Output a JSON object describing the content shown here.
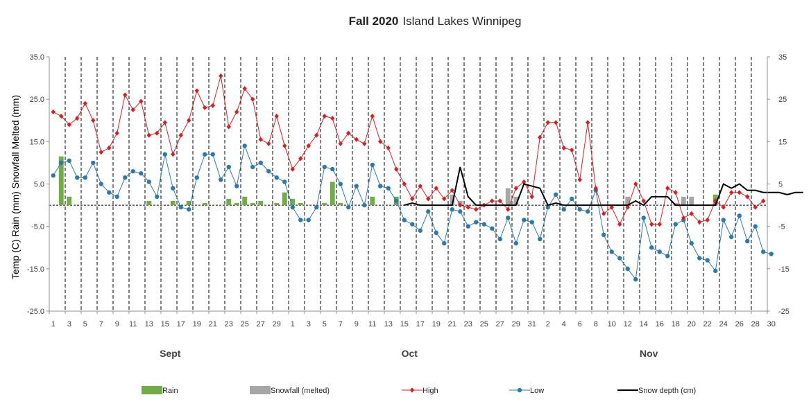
{
  "chart_data": {
    "type": "combo",
    "title_bold": "Fall 2020",
    "title_rest": "Island Lakes Winnipeg",
    "ylabel": "Temp (C) Rain (mm) Snowfall Melted (mm)",
    "y_left": {
      "min": -25,
      "max": 35,
      "step": 10,
      "tick_labels": [
        "35.0",
        "25.0",
        "15.0",
        "5.0",
        "-5.0",
        "-15.0",
        "-25.0"
      ]
    },
    "y_right": {
      "tick_labels": [
        "35",
        "25",
        "15",
        "5",
        "-5",
        "-15",
        "-25"
      ]
    },
    "x_tick_labels": [
      "1",
      "3",
      "5",
      "7",
      "9",
      "11",
      "13",
      "15",
      "17",
      "19",
      "21",
      "23",
      "25",
      "27",
      "29",
      "1",
      "3",
      "5",
      "7",
      "9",
      "11",
      "13",
      "15",
      "17",
      "19",
      "21",
      "23",
      "25",
      "27",
      "29",
      "31",
      "2",
      "4",
      "6",
      "8",
      "10",
      "12",
      "14",
      "16",
      "18",
      "20",
      "22",
      "24",
      "26",
      "28",
      "30"
    ],
    "months": [
      "Sept",
      "Oct",
      "Nov"
    ],
    "grid": "vertical-dashed",
    "legend_position": "bottom",
    "legend": [
      {
        "label": "Rain",
        "color": "#70ad47",
        "kind": "bar"
      },
      {
        "label": "Snowfall (melted)",
        "color": "#a6a6a6",
        "kind": "bar"
      },
      {
        "label": "High",
        "color": "#e31a1c",
        "kind": "line-diamond"
      },
      {
        "label": "Low",
        "color": "#2a7ab0",
        "kind": "line-circle"
      },
      {
        "label": "Snow depth (cm)",
        "color": "#000000",
        "kind": "line"
      }
    ],
    "series": [
      {
        "name": "High",
        "values": [
          22,
          21,
          19,
          20.5,
          24,
          20,
          12.5,
          13.5,
          17,
          26,
          22.5,
          24.5,
          16.5,
          17,
          19.5,
          12,
          16.5,
          20,
          27,
          23,
          23.5,
          30.5,
          18.5,
          22,
          27.5,
          25,
          15.5,
          14.5,
          21,
          14,
          8.5,
          11,
          14,
          16.5,
          21,
          20.5,
          14.5,
          17,
          15.5,
          14.5,
          21,
          15,
          13.5,
          8.5,
          5,
          1.5,
          4.5,
          1.5,
          4,
          1.5,
          3.5,
          0,
          -0.5,
          -1,
          0,
          1,
          1,
          -1,
          4,
          5.5,
          2,
          16,
          19.5,
          19.5,
          13.5,
          13,
          6,
          19.5,
          4,
          -2,
          -0.5,
          -4.5,
          -0.5,
          5,
          1,
          -4.5,
          -4.5,
          4,
          3,
          -3,
          -2,
          -4,
          -3.5,
          1,
          -0.5,
          3,
          3,
          2,
          -0.5,
          1
        ]
      },
      {
        "name": "Low",
        "values": [
          7,
          10,
          10.5,
          6.5,
          6.5,
          10,
          5,
          3,
          2,
          6.5,
          8,
          7.5,
          5.5,
          2,
          12,
          4,
          -0.5,
          -1,
          6.5,
          12,
          12,
          6,
          9,
          4.5,
          14,
          9,
          10,
          8,
          6.5,
          5.5,
          -0.5,
          -3.5,
          -3.5,
          -0.5,
          9,
          8.5,
          5,
          -0.5,
          4.5,
          0,
          9.5,
          4.5,
          4,
          1,
          -3.5,
          -4.5,
          -6,
          -1.5,
          -6.5,
          -9,
          -1,
          -1.5,
          -5,
          -4,
          -4.5,
          -5.5,
          -8,
          -3,
          -9,
          -3.5,
          -4,
          -8,
          -0.5,
          2.5,
          -1,
          1.5,
          -1,
          -1.5,
          3.5,
          -7,
          -11,
          -12.5,
          -15,
          -17.5,
          -3,
          -10,
          -11,
          -12,
          -4.5,
          -3.5,
          -9,
          -12.5,
          -13,
          -15.5,
          -3.5,
          -7.5,
          -2.5,
          -8.5,
          -5,
          -11,
          -11.5
        ]
      },
      {
        "name": "Rain",
        "values": [
          0,
          11.5,
          2,
          0,
          0,
          0,
          0,
          0,
          0,
          0,
          0,
          0,
          1,
          0,
          0,
          1,
          0,
          1,
          0,
          0.5,
          0,
          0,
          1.5,
          0.5,
          2,
          0.5,
          1,
          0,
          0.5,
          3,
          1.5,
          0.5,
          0,
          0,
          0.5,
          5.5,
          0.5,
          0,
          0,
          0,
          2,
          0,
          0,
          2,
          0,
          0,
          0,
          0,
          0,
          0,
          0,
          0,
          0,
          0,
          0,
          0,
          0,
          0,
          0,
          0,
          0,
          0,
          0,
          0,
          0,
          0,
          0,
          0,
          0,
          0,
          0,
          0,
          0,
          0,
          0,
          0,
          0,
          0,
          0,
          0,
          0,
          0,
          0,
          2.5,
          0,
          0,
          0,
          0,
          0,
          0
        ]
      },
      {
        "name": "Snowfall (melted)",
        "values": [
          0,
          0,
          0,
          0,
          0,
          0,
          0,
          0,
          0,
          0,
          0,
          0,
          0,
          0,
          0,
          0,
          0,
          0,
          0,
          0,
          0,
          0,
          0,
          0,
          0,
          0,
          0,
          0,
          0,
          0,
          0,
          0,
          0,
          0,
          0,
          0,
          0,
          0,
          0,
          0,
          0,
          0,
          0,
          0,
          0,
          0,
          0,
          0,
          0,
          0,
          2.5,
          1,
          0,
          0,
          0,
          0,
          0,
          4,
          2,
          0,
          0,
          0,
          0,
          0,
          0,
          0,
          0,
          0,
          0,
          0,
          0,
          0,
          2,
          0,
          0,
          0,
          0,
          0,
          0.5,
          2,
          2,
          0,
          0,
          0.5,
          0,
          0,
          0,
          0,
          0,
          0,
          0
        ]
      },
      {
        "name": "Snow depth (cm)",
        "start_index": 44,
        "values": [
          0,
          0.5,
          0,
          0,
          0,
          0,
          0,
          9,
          2,
          0,
          0,
          0,
          0,
          0,
          0,
          5,
          4.5,
          4,
          0,
          0.5,
          0,
          0,
          0,
          0,
          0,
          0,
          0,
          0,
          0,
          1,
          0,
          2,
          2,
          2,
          0,
          0,
          0,
          0,
          0,
          0,
          5,
          4,
          5,
          3.5,
          3.5,
          3,
          3,
          3,
          2.5,
          3,
          3
        ]
      }
    ]
  }
}
